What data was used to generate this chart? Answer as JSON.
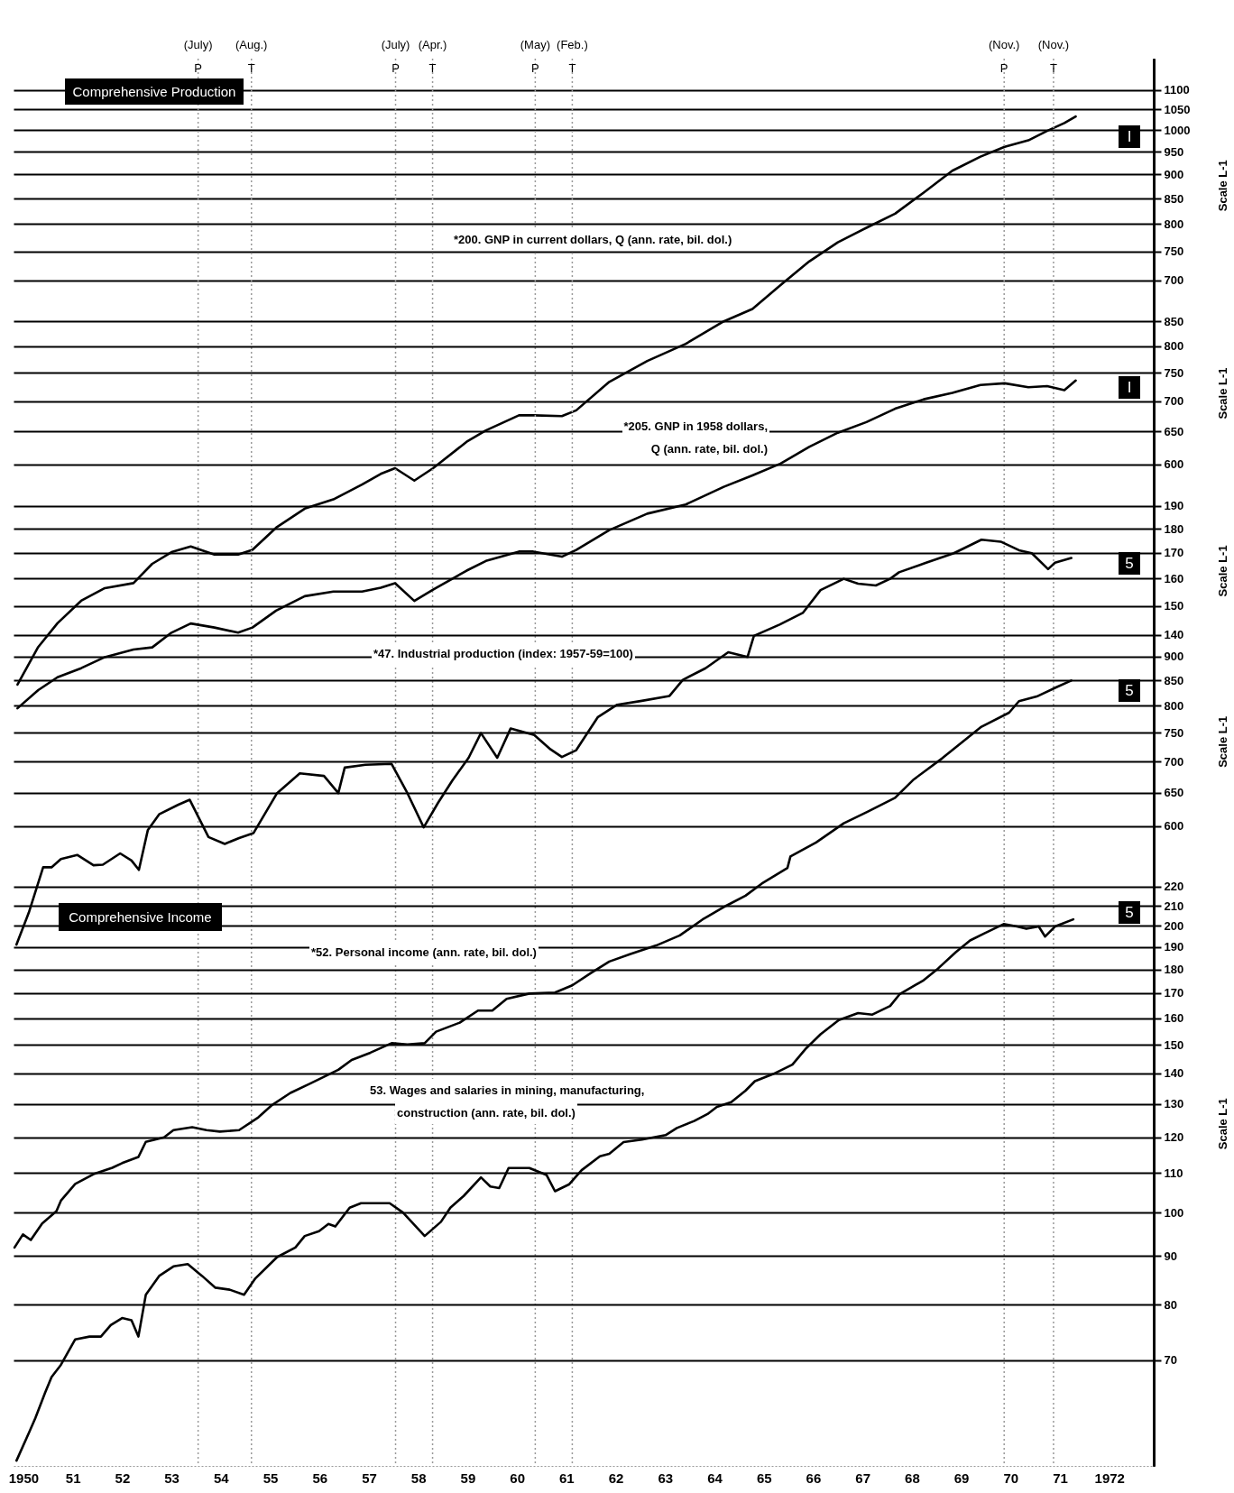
{
  "chart_data": [
    {
      "type": "line",
      "xlim": [
        1949.8,
        1972.9
      ],
      "tick_labels": "y",
      "log": true,
      "grid": "y",
      "ylim": [
        41.9,
        1185
      ],
      "yticks": [
        700,
        750,
        800,
        850,
        900,
        950,
        1000,
        1050,
        1100
      ],
      "ylabel": "Scale L-1",
      "series": [
        {
          "name": "*200. GNP in current dollars, Q (ann. rate, bil. dol.)",
          "color": "#000000",
          "x": [
            1949.88,
            1950.3,
            1950.69,
            1951.17,
            1951.65,
            1952.23,
            1952.61,
            1953.0,
            1953.39,
            1953.87,
            1954.35,
            1954.64,
            1955.12,
            1955.7,
            1956.28,
            1956.86,
            1957.24,
            1957.53,
            1957.92,
            1958.3,
            1958.98,
            1959.37,
            1960.04,
            1960.33,
            1960.91,
            1961.2,
            1961.87,
            1962.64,
            1963.42,
            1964.19,
            1964.77,
            1965.34,
            1965.92,
            1966.5,
            1967.08,
            1967.66,
            1968.24,
            1968.82,
            1969.39,
            1969.88,
            1970.36,
            1970.74,
            1971.09,
            1971.32
          ],
          "values": [
            268,
            293,
            310,
            327,
            337,
            341,
            357,
            367,
            372,
            365,
            365,
            369,
            389,
            407,
            416,
            431,
            442,
            448,
            435,
            448,
            477,
            490,
            508,
            508,
            507,
            514,
            550,
            578,
            602,
            635,
            654,
            692,
            732,
            766,
            793,
            820,
            862,
            908,
            939,
            961,
            976,
            998,
            1017,
            1033
          ]
        }
      ],
      "ref_lines": [
        {
          "axis": "x",
          "value": 1953.54,
          "label": "(July)\nP",
          "color": "#9a9a9a",
          "line_style": "dotted"
        },
        {
          "axis": "x",
          "value": 1954.62,
          "label": "(Aug.)\nT",
          "color": "#9a9a9a",
          "line_style": "dotted"
        },
        {
          "axis": "x",
          "value": 1957.54,
          "label": "(July)\nP",
          "color": "#9a9a9a",
          "line_style": "dotted"
        },
        {
          "axis": "x",
          "value": 1958.29,
          "label": "(Apr.)\nT",
          "color": "#9a9a9a",
          "line_style": "dotted"
        },
        {
          "axis": "x",
          "value": 1960.37,
          "label": "(May)\nP",
          "color": "#9a9a9a",
          "line_style": "dotted"
        },
        {
          "axis": "x",
          "value": 1961.12,
          "label": "(Feb.)\nT",
          "color": "#9a9a9a",
          "line_style": "dotted"
        },
        {
          "axis": "x",
          "value": 1969.87,
          "label": "(Nov.)\nP",
          "color": "#9a9a9a",
          "line_style": "dotted"
        },
        {
          "axis": "x",
          "value": 1970.87,
          "label": "(Nov.)\nT",
          "color": "#9a9a9a",
          "line_style": "dotted"
        }
      ],
      "annotations": [
        "Comprehensive Production",
        "I"
      ]
    },
    {
      "type": "line",
      "xlim": [
        1949.8,
        1972.9
      ],
      "tick_labels": "y",
      "log": true,
      "grid": "y",
      "ylim": [
        52.2,
        1613
      ],
      "yticks": [
        600,
        650,
        700,
        750,
        800,
        850
      ],
      "ylabel": "Scale L-1",
      "series": [
        {
          "name": "*205. GNP in 1958 dollars,\nQ (ann. rate, bil. dol.)",
          "color": "#000000",
          "x": [
            1949.88,
            1950.3,
            1950.69,
            1951.17,
            1951.65,
            1952.23,
            1952.61,
            1953.0,
            1953.39,
            1953.87,
            1954.35,
            1954.64,
            1955.12,
            1955.7,
            1956.28,
            1956.86,
            1957.24,
            1957.53,
            1957.92,
            1958.3,
            1958.98,
            1959.37,
            1960.04,
            1960.33,
            1960.91,
            1961.2,
            1961.87,
            1962.64,
            1963.42,
            1964.19,
            1964.77,
            1965.34,
            1965.92,
            1966.5,
            1967.08,
            1967.66,
            1968.24,
            1968.82,
            1969.39,
            1969.88,
            1970.36,
            1970.74,
            1971.09,
            1971.32
          ],
          "values": [
            331,
            346,
            357,
            365,
            375,
            382,
            384,
            398,
            407,
            403,
            398,
            403,
            420,
            435,
            440,
            440,
            444,
            449,
            430,
            442,
            463,
            474,
            485,
            485,
            479,
            487,
            511,
            532,
            544,
            568,
            584,
            601,
            626,
            648,
            665,
            687,
            703,
            714,
            728,
            731,
            724,
            726,
            719,
            736
          ]
        }
      ],
      "annotations": [
        "I"
      ]
    },
    {
      "type": "line",
      "xlim": [
        1949.8,
        1972.9
      ],
      "tick_labels": "y",
      "log": true,
      "grid": "y",
      "ylim": [
        19.6,
        547.5
      ],
      "yticks": [
        140,
        150,
        160,
        170,
        180,
        190
      ],
      "ylabel": "Scale L-1",
      "series": [
        {
          "name": "*47. Industrial production (index:  1957-59=100)",
          "color": "#000000",
          "x": [
            1949.86,
            1950.11,
            1950.4,
            1950.57,
            1950.76,
            1951.09,
            1951.42,
            1951.61,
            1951.96,
            1952.19,
            1952.34,
            1952.52,
            1952.75,
            1953.14,
            1953.37,
            1953.75,
            1954.08,
            1954.37,
            1954.66,
            1955.14,
            1955.6,
            1956.09,
            1956.38,
            1956.51,
            1956.93,
            1957.46,
            1957.78,
            1958.11,
            1958.4,
            1958.69,
            1959.02,
            1959.27,
            1959.6,
            1959.87,
            1960.35,
            1960.68,
            1960.91,
            1961.2,
            1961.64,
            1962.03,
            1962.53,
            1963.09,
            1963.36,
            1963.82,
            1964.28,
            1964.67,
            1964.8,
            1965.32,
            1965.79,
            1966.15,
            1966.62,
            1966.91,
            1967.27,
            1967.56,
            1967.74,
            1968.29,
            1968.85,
            1969.41,
            1969.8,
            1970.17,
            1970.43,
            1970.76,
            1970.9,
            1971.23
          ],
          "values": [
            67.3,
            72.6,
            80.8,
            80.8,
            82.4,
            83.2,
            81.2,
            81.3,
            83.5,
            82.1,
            80.3,
            88.2,
            91.6,
            93.7,
            94.8,
            86.8,
            85.4,
            86.6,
            87.6,
            96.3,
            100.9,
            100.3,
            96.3,
            102.3,
            103.0,
            103.2,
            96.3,
            88.8,
            94.1,
            99.2,
            104.7,
            111.0,
            104.7,
            112.2,
            110.5,
            106.8,
            104.9,
            106.6,
            115.3,
            118.7,
            119.8,
            121.2,
            125.9,
            129.4,
            134.4,
            132.9,
            139.7,
            143.5,
            147.5,
            155.7,
            159.9,
            158.1,
            157.4,
            159.9,
            162.4,
            166.1,
            169.9,
            175.4,
            174.6,
            171.1,
            169.9,
            163.6,
            166.1,
            168.0
          ]
        }
      ],
      "annotations": [
        "5"
      ]
    },
    {
      "type": "line",
      "xlim": [
        1949.8,
        1972.9
      ],
      "tick_labels": "y",
      "log": true,
      "grid": "y",
      "ylim": [
        129.9,
        3761
      ],
      "yticks": [
        600,
        650,
        700,
        750,
        800,
        850,
        900
      ],
      "ylabel": "Scale L-1",
      "series": [
        {
          "name": "*52. Personal income (ann. rate, bil. dol.)",
          "color": "#000000",
          "x": [
            1949.82,
            1949.99,
            1950.15,
            1950.38,
            1950.67,
            1950.76,
            1951.05,
            1951.42,
            1951.8,
            1952.0,
            1952.33,
            1952.48,
            1952.85,
            1953.04,
            1953.42,
            1953.71,
            1953.98,
            1954.37,
            1954.76,
            1955.04,
            1955.41,
            1955.8,
            1956.38,
            1956.65,
            1957.03,
            1957.46,
            1957.78,
            1958.13,
            1958.36,
            1958.84,
            1959.21,
            1959.5,
            1959.79,
            1960.25,
            1960.77,
            1961.12,
            1961.49,
            1961.87,
            1962.3,
            1962.82,
            1963.3,
            1963.76,
            1964.24,
            1964.63,
            1964.96,
            1965.48,
            1965.54,
            1966.06,
            1966.62,
            1967.1,
            1967.66,
            1968.04,
            1968.62,
            1969.41,
            1969.97,
            1970.17,
            1970.53,
            1970.92,
            1971.23
          ],
          "values": [
            219,
            226,
            223,
            232,
            239,
            245,
            255,
            261,
            265,
            268,
            272,
            282,
            285,
            290,
            292,
            290,
            289,
            290,
            299,
            308,
            317,
            324,
            335,
            343,
            349,
            357,
            356,
            357,
            367,
            375,
            386,
            386,
            397,
            402,
            403,
            410,
            422,
            434,
            442,
            451,
            462,
            480,
            496,
            508,
            523,
            543,
            558,
            577,
            604,
            621,
            642,
            671,
            706,
            761,
            787,
            809,
            818,
            836,
            850
          ]
        }
      ],
      "annotations": [
        "5",
        "Comprehensive Income"
      ]
    },
    {
      "type": "line",
      "xlim": [
        1949.8,
        1972.9
      ],
      "xticks": [
        {
          "value": 1950,
          "label": "1950"
        },
        {
          "value": 1951,
          "label": "51"
        },
        {
          "value": 1952,
          "label": "52"
        },
        {
          "value": 1953,
          "label": "53"
        },
        {
          "value": 1954,
          "label": "54"
        },
        {
          "value": 1955,
          "label": "55"
        },
        {
          "value": 1956,
          "label": "56"
        },
        {
          "value": 1957,
          "label": "57"
        },
        {
          "value": 1958,
          "label": "58"
        },
        {
          "value": 1959,
          "label": "59"
        },
        {
          "value": 1960,
          "label": "60"
        },
        {
          "value": 1961,
          "label": "61"
        },
        {
          "value": 1962,
          "label": "62"
        },
        {
          "value": 1963,
          "label": "63"
        },
        {
          "value": 1964,
          "label": "64"
        },
        {
          "value": 1965,
          "label": "65"
        },
        {
          "value": 1966,
          "label": "66"
        },
        {
          "value": 1967,
          "label": "67"
        },
        {
          "value": 1968,
          "label": "68"
        },
        {
          "value": 1969,
          "label": "69"
        },
        {
          "value": 1970,
          "label": "70"
        },
        {
          "value": 1971,
          "label": "71"
        },
        {
          "value": 1972,
          "label": "1972"
        }
      ],
      "log": true,
      "grid": "y",
      "ylim": [
        54.2,
        1628
      ],
      "yticks": [
        70,
        80,
        90,
        100,
        110,
        120,
        130,
        140,
        150,
        160,
        170,
        180,
        190,
        200,
        210,
        220
      ],
      "ylabel": "Scale L-1",
      "series": [
        {
          "name": "53. Wages and salaries in mining, manufacturing,\nconstruction (ann. rate, bil. dol.)",
          "color": "#000000",
          "x": [
            1949.86,
            1950.11,
            1950.24,
            1950.44,
            1950.57,
            1950.76,
            1951.05,
            1951.34,
            1951.57,
            1951.77,
            1952.0,
            1952.19,
            1952.33,
            1952.48,
            1952.75,
            1953.04,
            1953.33,
            1953.62,
            1953.89,
            1954.18,
            1954.47,
            1954.7,
            1955.14,
            1955.51,
            1955.7,
            1955.99,
            1956.18,
            1956.32,
            1956.61,
            1956.84,
            1957.42,
            1957.69,
            1958.13,
            1958.46,
            1958.65,
            1958.92,
            1959.27,
            1959.46,
            1959.64,
            1959.83,
            1960.25,
            1960.6,
            1960.77,
            1961.06,
            1961.31,
            1961.68,
            1961.87,
            1962.16,
            1962.53,
            1963.01,
            1963.24,
            1963.59,
            1963.86,
            1964.05,
            1964.34,
            1964.63,
            1964.82,
            1965.19,
            1965.58,
            1965.86,
            1966.15,
            1966.52,
            1966.91,
            1967.2,
            1967.56,
            1967.75,
            1968.24,
            1968.53,
            1968.89,
            1969.18,
            1969.47,
            1969.86,
            1970.13,
            1970.32,
            1970.57,
            1970.7,
            1970.9,
            1971.27
          ],
          "values": [
            54.9,
            58.7,
            60.8,
            64.7,
            67.2,
            69.2,
            73.6,
            74.1,
            74.1,
            76.2,
            77.5,
            77.1,
            74.1,
            82.0,
            85.8,
            87.8,
            88.3,
            85.8,
            83.4,
            83.0,
            82.0,
            85.3,
            89.8,
            91.9,
            94.5,
            95.6,
            97.3,
            96.7,
            101.2,
            102.3,
            102.3,
            100.0,
            94.5,
            97.8,
            101.2,
            104.1,
            108.9,
            106.5,
            106.1,
            111.4,
            111.4,
            109.5,
            105.3,
            107.1,
            110.8,
            114.6,
            115.3,
            118.6,
            119.3,
            120.6,
            122.7,
            124.8,
            126.9,
            129.1,
            130.6,
            134.3,
            137.4,
            139.8,
            143.0,
            148.8,
            153.9,
            159.3,
            162.0,
            161.4,
            164.8,
            169.5,
            175.4,
            180.4,
            187.7,
            193.1,
            196.4,
            200.9,
            199.7,
            198.6,
            199.7,
            194.9,
            199.7,
            203.2
          ]
        }
      ],
      "annotations": [
        "5"
      ]
    }
  ]
}
